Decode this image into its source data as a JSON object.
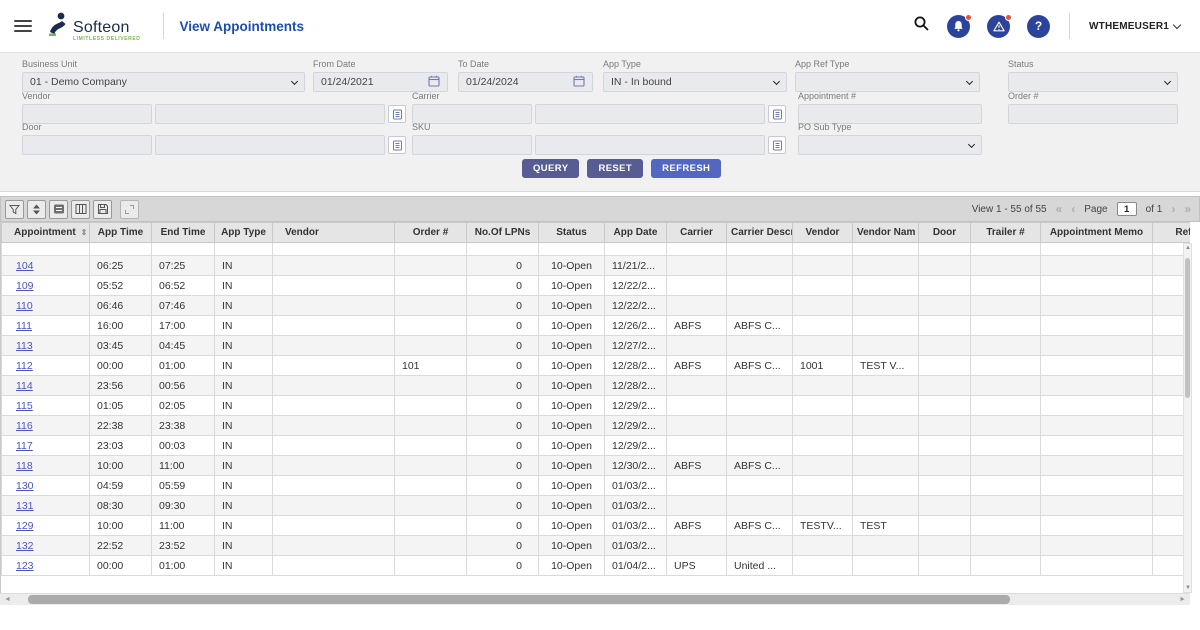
{
  "header": {
    "brand": "Softeon",
    "brand_tagline": "LIMITLESS DELIVERED",
    "title": "View Appointments",
    "user": "WTHEMEUSER1"
  },
  "filters": {
    "business_unit": {
      "label": "Business Unit",
      "value": "01 - Demo Company"
    },
    "from_date": {
      "label": "From Date",
      "value": "01/24/2021"
    },
    "to_date": {
      "label": "To Date",
      "value": "01/24/2024"
    },
    "app_type": {
      "label": "App Type",
      "value": "IN - In bound"
    },
    "app_ref_type": {
      "label": "App Ref Type",
      "value": ""
    },
    "status": {
      "label": "Status",
      "value": ""
    },
    "vendor": {
      "label": "Vendor",
      "value": "",
      "value2": ""
    },
    "carrier": {
      "label": "Carrier",
      "value": "",
      "value2": ""
    },
    "appointment_no": {
      "label": "Appointment #",
      "value": ""
    },
    "order_no": {
      "label": "Order #",
      "value": ""
    },
    "door": {
      "label": "Door",
      "value": "",
      "value2": ""
    },
    "sku": {
      "label": "SKU",
      "value": "",
      "value2": ""
    },
    "po_sub_type": {
      "label": "PO Sub Type",
      "value": ""
    }
  },
  "actions": {
    "query": "QUERY",
    "reset": "RESET",
    "refresh": "REFRESH"
  },
  "grid": {
    "view_info": "View 1 - 55 of 55",
    "page_label": "Page",
    "page_value": "1",
    "page_of_label": "of 1",
    "columns": [
      "Appointment",
      "App Time",
      "End Time",
      "App Type",
      "Vendor",
      "Order #",
      "No.Of LPNs",
      "Status",
      "App Date",
      "Carrier",
      "Carrier Descr",
      "Vendor",
      "Vendor Nam",
      "Door",
      "Trailer #",
      "Appointment Memo",
      "Ref M"
    ],
    "rows": [
      [
        "104",
        "06:25",
        "07:25",
        "IN",
        "",
        "",
        "0",
        "10-Open",
        "11/21/2...",
        "",
        "",
        "",
        "",
        "",
        "",
        "",
        ""
      ],
      [
        "109",
        "05:52",
        "06:52",
        "IN",
        "",
        "",
        "0",
        "10-Open",
        "12/22/2...",
        "",
        "",
        "",
        "",
        "",
        "",
        "",
        ""
      ],
      [
        "110",
        "06:46",
        "07:46",
        "IN",
        "",
        "",
        "0",
        "10-Open",
        "12/22/2...",
        "",
        "",
        "",
        "",
        "",
        "",
        "",
        ""
      ],
      [
        "111",
        "16:00",
        "17:00",
        "IN",
        "",
        "",
        "0",
        "10-Open",
        "12/26/2...",
        "ABFS",
        "ABFS C...",
        "",
        "",
        "",
        "",
        "",
        ""
      ],
      [
        "113",
        "03:45",
        "04:45",
        "IN",
        "",
        "",
        "0",
        "10-Open",
        "12/27/2...",
        "",
        "",
        "",
        "",
        "",
        "",
        "",
        ""
      ],
      [
        "112",
        "00:00",
        "01:00",
        "IN",
        "",
        "101",
        "0",
        "10-Open",
        "12/28/2...",
        "ABFS",
        "ABFS C...",
        "1001",
        "TEST V...",
        "",
        "",
        "",
        ""
      ],
      [
        "114",
        "23:56",
        "00:56",
        "IN",
        "",
        "",
        "0",
        "10-Open",
        "12/28/2...",
        "",
        "",
        "",
        "",
        "",
        "",
        "",
        ""
      ],
      [
        "115",
        "01:05",
        "02:05",
        "IN",
        "",
        "",
        "0",
        "10-Open",
        "12/29/2...",
        "",
        "",
        "",
        "",
        "",
        "",
        "",
        ""
      ],
      [
        "116",
        "22:38",
        "23:38",
        "IN",
        "",
        "",
        "0",
        "10-Open",
        "12/29/2...",
        "",
        "",
        "",
        "",
        "",
        "",
        "",
        ""
      ],
      [
        "117",
        "23:03",
        "00:03",
        "IN",
        "",
        "",
        "0",
        "10-Open",
        "12/29/2...",
        "",
        "",
        "",
        "",
        "",
        "",
        "",
        ""
      ],
      [
        "118",
        "10:00",
        "11:00",
        "IN",
        "",
        "",
        "0",
        "10-Open",
        "12/30/2...",
        "ABFS",
        "ABFS C...",
        "",
        "",
        "",
        "",
        "",
        ""
      ],
      [
        "130",
        "04:59",
        "05:59",
        "IN",
        "",
        "",
        "0",
        "10-Open",
        "01/03/2...",
        "",
        "",
        "",
        "",
        "",
        "",
        "",
        ""
      ],
      [
        "131",
        "08:30",
        "09:30",
        "IN",
        "",
        "",
        "0",
        "10-Open",
        "01/03/2...",
        "",
        "",
        "",
        "",
        "",
        "",
        "",
        ""
      ],
      [
        "129",
        "10:00",
        "11:00",
        "IN",
        "",
        "",
        "0",
        "10-Open",
        "01/03/2...",
        "ABFS",
        "ABFS C...",
        "TESTV...",
        "TEST",
        "",
        "",
        "",
        ""
      ],
      [
        "132",
        "22:52",
        "23:52",
        "IN",
        "",
        "",
        "0",
        "10-Open",
        "01/03/2...",
        "",
        "",
        "",
        "",
        "",
        "",
        "",
        ""
      ],
      [
        "123",
        "00:00",
        "01:00",
        "IN",
        "",
        "",
        "0",
        "10-Open",
        "01/04/2...",
        "UPS",
        "United ...",
        "",
        "",
        "",
        "",
        "",
        ""
      ]
    ]
  },
  "colors": {
    "title_blue": "#1b4db3",
    "icon_navy": "#2b439b",
    "badge_red": "#e2543f",
    "button_slate": "#575c93",
    "button_blue": "#5467c0",
    "link_blue": "#4a55c4"
  }
}
